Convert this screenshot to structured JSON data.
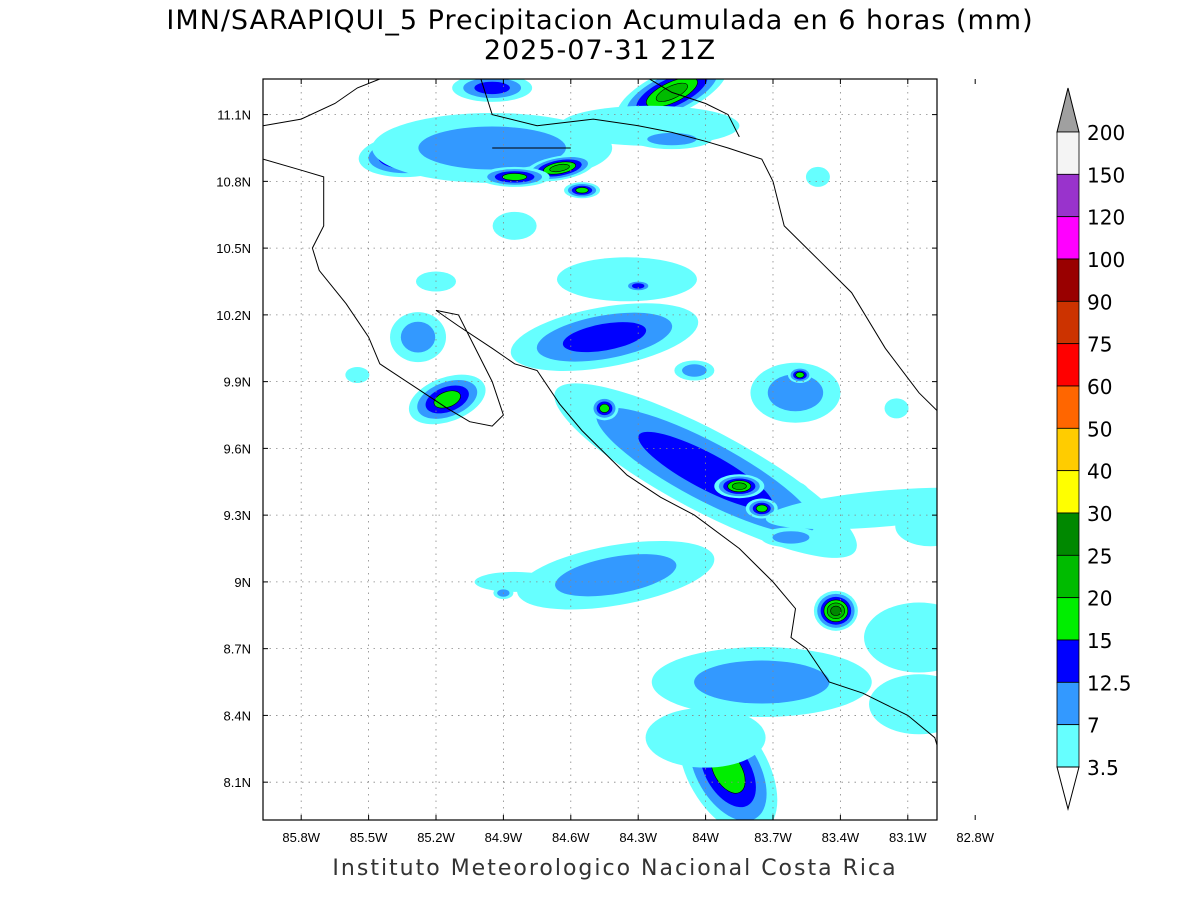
{
  "title": {
    "line1": "IMN/SARAPIQUI_5 Precipitacion Acumulada en 6 horas (mm)",
    "line2": "2025-07-31 21Z"
  },
  "footer": "Instituto Meteorologico Nacional Costa Rica",
  "axes": {
    "lon_ticks": [
      "85.8W",
      "85.5W",
      "85.2W",
      "84.9W",
      "84.6W",
      "84.3W",
      "84W",
      "83.7W",
      "83.4W",
      "83.1W",
      "82.8W"
    ],
    "lon_values": [
      -85.8,
      -85.5,
      -85.2,
      -84.9,
      -84.6,
      -84.3,
      -84.0,
      -83.7,
      -83.4,
      -83.1,
      -82.8
    ],
    "lat_ticks": [
      "11.1N",
      "10.8N",
      "10.5N",
      "10.2N",
      "9.9N",
      "9.6N",
      "9.3N",
      "9N",
      "8.7N",
      "8.4N",
      "8.1N"
    ],
    "lat_values": [
      11.1,
      10.8,
      10.5,
      10.2,
      9.9,
      9.6,
      9.3,
      9.0,
      8.7,
      8.4,
      8.1
    ],
    "lon_range": [
      -85.97,
      -82.97
    ],
    "lat_range": [
      7.93,
      11.26
    ],
    "grid": true
  },
  "legend": {
    "labels": [
      "200",
      "150",
      "120",
      "100",
      "90",
      "75",
      "60",
      "50",
      "40",
      "30",
      "25",
      "20",
      "15",
      "12.5",
      "7",
      "3.5"
    ],
    "colors": [
      "#f4f4f4",
      "#9933cc",
      "#ff00ff",
      "#990000",
      "#cc3300",
      "#ff0000",
      "#ff6600",
      "#ffcc00",
      "#ffff00",
      "#008800",
      "#00bb00",
      "#00ee00",
      "#0000ff",
      "#3399ff",
      "#66ffff"
    ],
    "over_color": "#a0a0a0",
    "under_color": "#ffffff"
  },
  "precip_cells": [
    {
      "lon": -84.15,
      "lat": 11.2,
      "rx": 60,
      "ry": 22,
      "rot": -25,
      "level": 5
    },
    {
      "lon": -84.95,
      "lat": 11.22,
      "rx": 40,
      "ry": 14,
      "rot": 0,
      "level": 3
    },
    {
      "lon": -85.3,
      "lat": 10.92,
      "rx": 55,
      "ry": 22,
      "rot": -5,
      "level": 5
    },
    {
      "lon": -84.95,
      "lat": 10.95,
      "rx": 120,
      "ry": 35,
      "rot": 0,
      "level": 2
    },
    {
      "lon": -84.65,
      "lat": 10.86,
      "rx": 35,
      "ry": 12,
      "rot": -10,
      "level": 5
    },
    {
      "lon": -84.85,
      "lat": 10.82,
      "rx": 35,
      "ry": 10,
      "rot": 0,
      "level": 4
    },
    {
      "lon": -84.55,
      "lat": 10.76,
      "rx": 18,
      "ry": 8,
      "rot": 0,
      "level": 4
    },
    {
      "lon": -84.25,
      "lat": 11.05,
      "rx": 90,
      "ry": 20,
      "rot": 0,
      "level": 1
    },
    {
      "lon": -84.15,
      "lat": 10.99,
      "rx": 40,
      "ry": 10,
      "rot": 0,
      "level": 2
    },
    {
      "lon": -84.85,
      "lat": 10.6,
      "rx": 22,
      "ry": 14,
      "rot": 0,
      "level": 1
    },
    {
      "lon": -83.5,
      "lat": 10.82,
      "rx": 12,
      "ry": 10,
      "rot": 0,
      "level": 1
    },
    {
      "lon": -84.6,
      "lat": 10.06,
      "rx": 45,
      "ry": 22,
      "rot": -10,
      "level": 7
    },
    {
      "lon": -84.45,
      "lat": 10.1,
      "rx": 95,
      "ry": 30,
      "rot": -10,
      "level": 3
    },
    {
      "lon": -84.35,
      "lat": 10.36,
      "rx": 70,
      "ry": 22,
      "rot": 0,
      "level": 1
    },
    {
      "lon": -84.3,
      "lat": 10.33,
      "rx": 14,
      "ry": 6,
      "rot": 0,
      "level": 3
    },
    {
      "lon": -85.15,
      "lat": 9.82,
      "rx": 40,
      "ry": 22,
      "rot": -20,
      "level": 4
    },
    {
      "lon": -85.28,
      "lat": 10.1,
      "rx": 28,
      "ry": 25,
      "rot": 0,
      "level": 2
    },
    {
      "lon": -85.2,
      "lat": 10.35,
      "rx": 20,
      "ry": 10,
      "rot": 0,
      "level": 1
    },
    {
      "lon": -85.55,
      "lat": 9.93,
      "rx": 12,
      "ry": 8,
      "rot": 0,
      "level": 1
    },
    {
      "lon": -84.18,
      "lat": 9.61,
      "rx": 22,
      "ry": 14,
      "rot": -20,
      "level": 8
    },
    {
      "lon": -84.0,
      "lat": 9.54,
      "rx": 22,
      "ry": 16,
      "rot": -30,
      "level": 8
    },
    {
      "lon": -83.61,
      "lat": 9.38,
      "rx": 18,
      "ry": 16,
      "rot": 0,
      "level": 8
    },
    {
      "lon": -84.0,
      "lat": 9.5,
      "rx": 170,
      "ry": 40,
      "rot": 28,
      "level": 3
    },
    {
      "lon": -83.85,
      "lat": 9.43,
      "rx": 25,
      "ry": 12,
      "rot": 0,
      "level": 5
    },
    {
      "lon": -83.75,
      "lat": 9.33,
      "rx": 16,
      "ry": 10,
      "rot": 0,
      "level": 4
    },
    {
      "lon": -84.45,
      "lat": 9.78,
      "rx": 14,
      "ry": 12,
      "rot": 0,
      "level": 4
    },
    {
      "lon": -83.6,
      "lat": 9.85,
      "rx": 45,
      "ry": 30,
      "rot": 0,
      "level": 2
    },
    {
      "lon": -83.58,
      "lat": 9.93,
      "rx": 12,
      "ry": 8,
      "rot": 0,
      "level": 4
    },
    {
      "lon": -84.05,
      "lat": 9.95,
      "rx": 20,
      "ry": 10,
      "rot": 0,
      "level": 2
    },
    {
      "lon": -83.2,
      "lat": 9.33,
      "rx": 120,
      "ry": 18,
      "rot": -5,
      "level": 1
    },
    {
      "lon": -83.62,
      "lat": 9.2,
      "rx": 30,
      "ry": 10,
      "rot": 0,
      "level": 2
    },
    {
      "lon": -83.15,
      "lat": 9.78,
      "rx": 12,
      "ry": 10,
      "rot": 0,
      "level": 1
    },
    {
      "lon": -82.9,
      "lat": 9.65,
      "rx": 12,
      "ry": 10,
      "rot": 0,
      "level": 3
    },
    {
      "lon": -82.75,
      "lat": 9.42,
      "rx": 35,
      "ry": 40,
      "rot": 0,
      "level": 2
    },
    {
      "lon": -82.75,
      "lat": 9.44,
      "rx": 15,
      "ry": 10,
      "rot": 0,
      "level": 5
    },
    {
      "lon": -83.0,
      "lat": 9.25,
      "rx": 35,
      "ry": 20,
      "rot": 0,
      "level": 1
    },
    {
      "lon": -84.4,
      "lat": 9.05,
      "rx": 50,
      "ry": 20,
      "rot": -15,
      "level": 6
    },
    {
      "lon": -84.4,
      "lat": 9.03,
      "rx": 100,
      "ry": 30,
      "rot": -10,
      "level": 2
    },
    {
      "lon": -83.42,
      "lat": 8.87,
      "rx": 22,
      "ry": 20,
      "rot": 0,
      "level": 6
    },
    {
      "lon": -83.0,
      "lat": 8.77,
      "rx": 25,
      "ry": 18,
      "rot": -15,
      "level": 6
    },
    {
      "lon": -83.05,
      "lat": 8.75,
      "rx": 55,
      "ry": 35,
      "rot": 0,
      "level": 1
    },
    {
      "lon": -82.75,
      "lat": 8.68,
      "rx": 25,
      "ry": 12,
      "rot": 0,
      "level": 2
    },
    {
      "lon": -83.75,
      "lat": 8.65,
      "rx": 18,
      "ry": 12,
      "rot": 0,
      "level": 6
    },
    {
      "lon": -83.75,
      "lat": 8.58,
      "rx": 20,
      "ry": 10,
      "rot": 0,
      "level": 5
    },
    {
      "lon": -83.62,
      "lat": 8.55,
      "rx": 12,
      "ry": 8,
      "rot": 0,
      "level": 5
    },
    {
      "lon": -83.75,
      "lat": 8.55,
      "rx": 110,
      "ry": 35,
      "rot": 0,
      "level": 2
    },
    {
      "lon": -82.96,
      "lat": 8.45,
      "rx": 15,
      "ry": 10,
      "rot": 0,
      "level": 6
    },
    {
      "lon": -83.1,
      "lat": 8.42,
      "rx": 25,
      "ry": 10,
      "rot": 0,
      "level": 5
    },
    {
      "lon": -83.05,
      "lat": 8.45,
      "rx": 50,
      "ry": 30,
      "rot": 0,
      "level": 1
    },
    {
      "lon": -83.9,
      "lat": 8.15,
      "rx": 40,
      "ry": 70,
      "rot": -30,
      "level": 4
    },
    {
      "lon": -84.0,
      "lat": 8.3,
      "rx": 60,
      "ry": 30,
      "rot": 0,
      "level": 1
    },
    {
      "lon": -84.85,
      "lat": 9.0,
      "rx": 40,
      "ry": 10,
      "rot": 0,
      "level": 1
    },
    {
      "lon": -84.9,
      "lat": 8.95,
      "rx": 10,
      "ry": 6,
      "rot": 0,
      "level": 2
    }
  ],
  "coastlines": [
    [
      [
        -85.97,
        10.9
      ],
      [
        -85.8,
        10.85
      ],
      [
        -85.7,
        10.82
      ],
      [
        -85.7,
        10.6
      ],
      [
        -85.75,
        10.5
      ],
      [
        -85.72,
        10.4
      ],
      [
        -85.6,
        10.25
      ],
      [
        -85.5,
        10.1
      ],
      [
        -85.45,
        9.98
      ],
      [
        -85.3,
        9.88
      ],
      [
        -85.15,
        9.78
      ],
      [
        -85.05,
        9.72
      ],
      [
        -84.95,
        9.7
      ],
      [
        -84.9,
        9.75
      ],
      [
        -84.95,
        9.9
      ],
      [
        -85.05,
        10.1
      ],
      [
        -85.1,
        10.2
      ],
      [
        -85.2,
        10.22
      ],
      [
        -85.1,
        10.15
      ],
      [
        -84.95,
        10.05
      ],
      [
        -84.85,
        9.98
      ],
      [
        -84.75,
        9.95
      ],
      [
        -84.65,
        9.8
      ],
      [
        -84.55,
        9.68
      ],
      [
        -84.35,
        9.48
      ],
      [
        -84.2,
        9.38
      ],
      [
        -84.05,
        9.3
      ],
      [
        -83.85,
        9.15
      ],
      [
        -83.7,
        9.0
      ],
      [
        -83.6,
        8.88
      ],
      [
        -83.62,
        8.75
      ],
      [
        -83.55,
        8.7
      ],
      [
        -83.45,
        8.55
      ],
      [
        -83.3,
        8.5
      ],
      [
        -83.2,
        8.45
      ],
      [
        -83.1,
        8.4
      ],
      [
        -82.98,
        8.3
      ],
      [
        -82.93,
        8.13
      ],
      [
        -82.9,
        8.03
      ],
      [
        -82.95,
        7.95
      ]
    ],
    [
      [
        -85.97,
        11.05
      ],
      [
        -85.8,
        11.08
      ],
      [
        -85.65,
        11.15
      ],
      [
        -85.55,
        11.22
      ],
      [
        -85.45,
        11.26
      ]
    ],
    [
      [
        -85.0,
        11.26
      ],
      [
        -84.95,
        11.1
      ],
      [
        -84.75,
        11.05
      ],
      [
        -84.5,
        11.08
      ],
      [
        -84.3,
        11.05
      ],
      [
        -84.15,
        11.02
      ],
      [
        -84.0,
        10.98
      ],
      [
        -83.9,
        10.95
      ],
      [
        -83.75,
        10.9
      ],
      [
        -83.7,
        10.8
      ],
      [
        -83.65,
        10.6
      ],
      [
        -83.5,
        10.45
      ],
      [
        -83.35,
        10.3
      ],
      [
        -83.2,
        10.05
      ],
      [
        -83.05,
        9.85
      ],
      [
        -82.9,
        9.7
      ],
      [
        -82.75,
        9.6
      ],
      [
        -82.6,
        9.56
      ],
      [
        -82.5,
        9.53
      ],
      [
        -82.45,
        9.5
      ]
    ],
    [
      [
        -84.25,
        11.26
      ],
      [
        -84.15,
        11.2
      ],
      [
        -84.0,
        11.15
      ],
      [
        -83.9,
        11.1
      ],
      [
        -83.85,
        11.0
      ]
    ],
    [
      [
        -84.6,
        10.95
      ],
      [
        -84.8,
        10.95
      ],
      [
        -84.95,
        10.95
      ]
    ]
  ]
}
